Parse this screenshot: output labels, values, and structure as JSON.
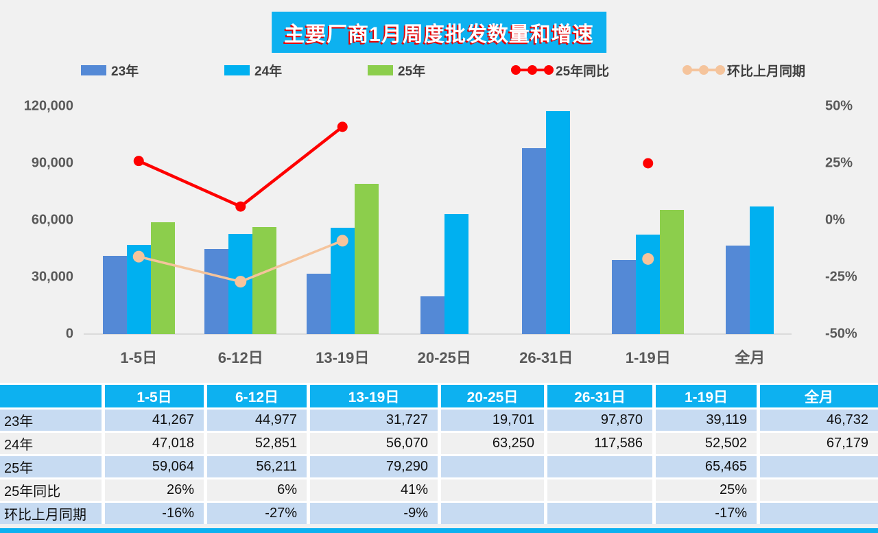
{
  "title": "主要厂商1月周度批发数量和增速",
  "colors": {
    "accent_cyan": "#0DB1F0",
    "bar_blue": "#5489D6",
    "bar_cyan": "#00B0F0",
    "bar_green": "#8CCE4C",
    "line_red": "#FE0000",
    "line_peach": "#F5C49C",
    "axis_text": "#595959",
    "table_row_blue": "#C7DBF2",
    "table_row_gray": "#F0F0F0",
    "background": "#F1F1F1"
  },
  "legend": [
    {
      "label": "23年",
      "type": "bar",
      "color": "#5489D6"
    },
    {
      "label": "24年",
      "type": "bar",
      "color": "#00B0F0"
    },
    {
      "label": "25年",
      "type": "bar",
      "color": "#8CCE4C"
    },
    {
      "label": "25年同比",
      "type": "line",
      "color": "#FE0000"
    },
    {
      "label": "环比上月同期",
      "type": "line",
      "color": "#F5C49C"
    }
  ],
  "chart_data": {
    "type": "bar",
    "title": "主要厂商1月周度批发数量和增速",
    "categories": [
      "1-5日",
      "6-12日",
      "13-19日",
      "20-25日",
      "26-31日",
      "1-19日",
      "全月"
    ],
    "bar_series": [
      {
        "name": "23年",
        "color": "#5489D6",
        "values": [
          41267,
          44977,
          31727,
          19701,
          97870,
          39119,
          46732
        ]
      },
      {
        "name": "24年",
        "color": "#00B0F0",
        "values": [
          47018,
          52851,
          56070,
          63250,
          117586,
          52502,
          67179
        ]
      },
      {
        "name": "25年",
        "color": "#8CCE4C",
        "values": [
          59064,
          56211,
          79290,
          null,
          null,
          65465,
          null
        ]
      }
    ],
    "line_series": [
      {
        "name": "25年同比",
        "color": "#FE0000",
        "axis": "right",
        "values_pct": [
          26,
          6,
          41,
          null,
          null,
          25,
          null
        ]
      },
      {
        "name": "环比上月同期",
        "color": "#F5C49C",
        "axis": "right",
        "values_pct": [
          -16,
          -27,
          -9,
          null,
          null,
          -17,
          null
        ]
      }
    ],
    "left_axis": {
      "ticks": [
        "0",
        "30,000",
        "60,000",
        "90,000",
        "120,000"
      ],
      "tick_values": [
        0,
        30000,
        60000,
        90000,
        120000
      ],
      "min": 0,
      "max": 120000
    },
    "right_axis": {
      "ticks": [
        "-50%",
        "-25%",
        "0%",
        "25%",
        "50%"
      ],
      "tick_values": [
        -50,
        -25,
        0,
        25,
        50
      ],
      "min": -50,
      "max": 50
    },
    "grid": false,
    "legend_position": "top"
  },
  "table": {
    "header": [
      "",
      "1-5日",
      "6-12日",
      "13-19日",
      "20-25日",
      "26-31日",
      "1-19日",
      "全月"
    ],
    "rows": [
      {
        "label": "23年",
        "values": [
          "41,267",
          "44,977",
          "31,727",
          "19,701",
          "97,870",
          "39,119",
          "46,732"
        ]
      },
      {
        "label": "24年",
        "values": [
          "47,018",
          "52,851",
          "56,070",
          "63,250",
          "117,586",
          "52,502",
          "67,179"
        ]
      },
      {
        "label": "25年",
        "values": [
          "59,064",
          "56,211",
          "79,290",
          "",
          "",
          "65,465",
          ""
        ]
      },
      {
        "label": "25年同比",
        "values": [
          "26%",
          "6%",
          "41%",
          "",
          "",
          "25%",
          ""
        ]
      },
      {
        "label": "环比上月同期",
        "values": [
          "-16%",
          "-27%",
          "-9%",
          "",
          "",
          "-17%",
          ""
        ]
      }
    ]
  }
}
